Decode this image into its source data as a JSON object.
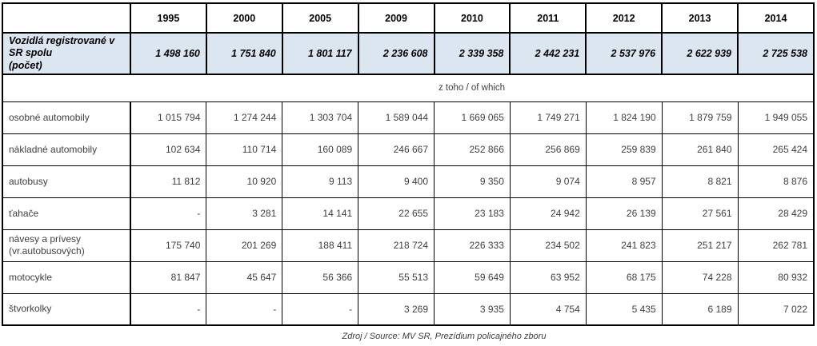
{
  "document": {
    "source_note": "Zdroj / Source:  MV SR, Prezídium policajného zboru"
  },
  "table": {
    "corner_label": "",
    "years": [
      "1995",
      "2000",
      "2005",
      "2009",
      "2010",
      "2011",
      "2012",
      "2013",
      "2014"
    ],
    "total_row": {
      "label": "Vozidlá registrované v SR spolu",
      "unit_note": "(počet)",
      "values": [
        "1 498 160",
        "1 751 840",
        "1 801 117",
        "2 236 608",
        "2 339 358",
        "2 442 231",
        "2 537 976",
        "2 622 939",
        "2 725 538"
      ]
    },
    "subheader_label": "z toho / of which",
    "rows": [
      {
        "label": "osobné automobily",
        "values": [
          "1 015 794",
          "1 274 244",
          "1 303 704",
          "1 589 044",
          "1 669 065",
          "1 749 271",
          "1 824 190",
          "1 879 759",
          "1 949 055"
        ]
      },
      {
        "label": "nákladné automobily",
        "values": [
          "102 634",
          "110 714",
          "160 089",
          "246 667",
          "252 866",
          "256 869",
          "259 839",
          "261 840",
          "265 424"
        ]
      },
      {
        "label": "autobusy",
        "values": [
          "11 812",
          "10 920",
          "9 113",
          "9 400",
          "9 350",
          "9 074",
          "8 957",
          "8 821",
          "8 876"
        ]
      },
      {
        "label": "ťahače",
        "values": [
          "-",
          "3 281",
          "14 141",
          "22 655",
          "23 183",
          "24 942",
          "26 139",
          "27 561",
          "28 429"
        ]
      },
      {
        "label": "návesy a prívesy (vr.autobusových)",
        "values": [
          "175 740",
          "201 269",
          "188 411",
          "218 724",
          "226 333",
          "234 502",
          "241 823",
          "251 217",
          "262 781"
        ]
      },
      {
        "label": "motocykle",
        "values": [
          "81 847",
          "45 647",
          "56 366",
          "55 513",
          "59 649",
          "63 952",
          "68 175",
          "74 228",
          "80 932"
        ]
      },
      {
        "label": "štvorkolky",
        "values": [
          "-",
          "-",
          "-",
          "3 269",
          "3 935",
          "4 754",
          "5 435",
          "6 189",
          "7 022"
        ]
      }
    ]
  },
  "colors": {
    "highlight_row_bg": "#dce6f1",
    "border": "#000000",
    "body_text": "#404040",
    "header_text": "#000000"
  }
}
